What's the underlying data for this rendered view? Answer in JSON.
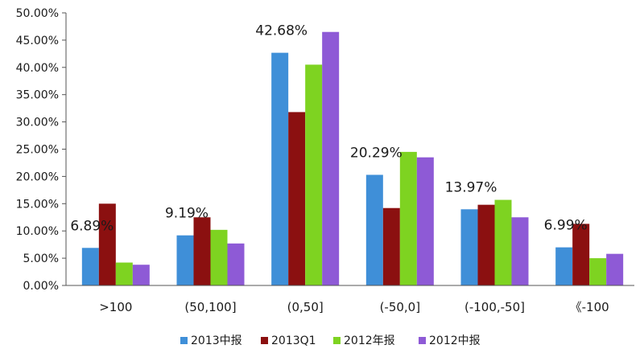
{
  "chart_data": {
    "type": "bar",
    "categories": [
      ">100",
      "(50,100]",
      "(0,50]",
      "(-50,0]",
      "(-100,-50]",
      "《-100"
    ],
    "series": [
      {
        "name": "2013中报",
        "color": "#3f8fd8",
        "values": [
          6.89,
          9.19,
          42.68,
          20.29,
          13.97,
          6.99
        ]
      },
      {
        "name": "2013Q1",
        "color": "#8b1010",
        "values": [
          15.0,
          12.5,
          31.8,
          14.2,
          14.8,
          11.3
        ]
      },
      {
        "name": "2012年报",
        "color": "#7ed321",
        "values": [
          4.2,
          10.2,
          40.5,
          24.5,
          15.7,
          5.0
        ]
      },
      {
        "name": "2012中报",
        "color": "#8e5ad6",
        "values": [
          3.8,
          7.7,
          46.5,
          23.5,
          12.5,
          5.8
        ]
      }
    ],
    "data_labels": [
      {
        "category_index": 0,
        "text": "6.89%"
      },
      {
        "category_index": 1,
        "text": "9.19%"
      },
      {
        "category_index": 2,
        "text": "42.68%"
      },
      {
        "category_index": 3,
        "text": "20.29%"
      },
      {
        "category_index": 4,
        "text": "13.97%"
      },
      {
        "category_index": 5,
        "text": "6.99%"
      }
    ],
    "yticks": [
      "0.00%",
      "5.00%",
      "10.00%",
      "15.00%",
      "20.00%",
      "25.00%",
      "30.00%",
      "35.00%",
      "40.00%",
      "45.00%",
      "50.00%"
    ],
    "ylim": [
      0,
      50
    ],
    "grid": false,
    "legend_position": "bottom"
  }
}
